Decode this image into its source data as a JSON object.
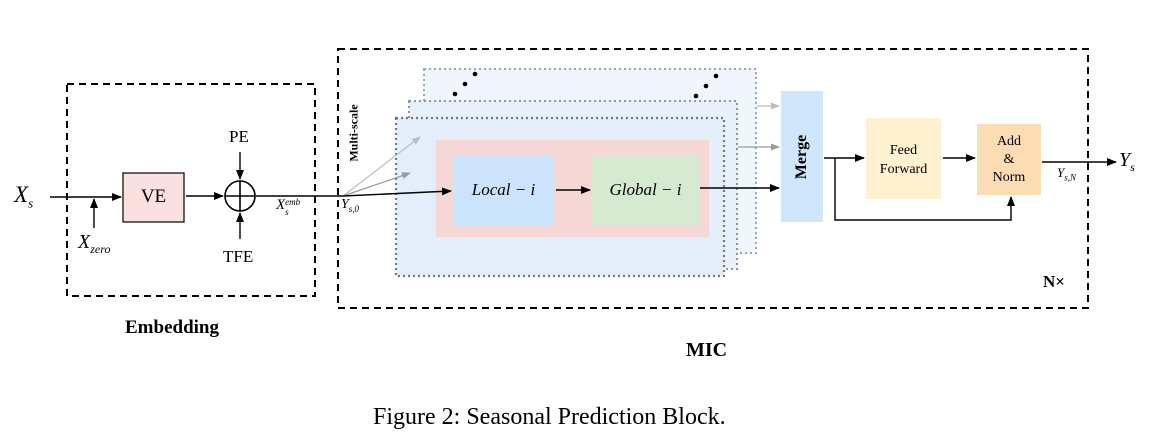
{
  "embedding": {
    "input_label": "X",
    "input_sub": "s",
    "zero_label": "X",
    "zero_sub": "zero",
    "ve_label": "VE",
    "pe_label": "PE",
    "tfe_label": "TFE",
    "emb_label": "X",
    "emb_sub": "s",
    "emb_sup": "emb",
    "section_title": "Embedding"
  },
  "mic": {
    "y0_label": "Y",
    "y0_sub": "s,0",
    "multiscale_label": "Multi-scale",
    "local_label": "Local − i",
    "global_label": "Global − i",
    "merge_label": "Merge",
    "ff_line1": "Feed",
    "ff_line2": "Forward",
    "an_line1": "Add",
    "an_line2": "&",
    "an_line3": "Norm",
    "yn_label": "Y",
    "yn_sub": "s,N",
    "output_label": "Y",
    "output_sub": "s",
    "repeat_label": "N×",
    "section_title": "MIC"
  },
  "caption": "Figure 2: Seasonal Prediction Block.",
  "colors": {
    "ve_fill": "#fbe0e0",
    "local_fill": "#cce4fb",
    "global_fill": "#d6ead2",
    "merge_fill": "#cfe6fb",
    "ff_fill": "#fdf1cf",
    "an_fill": "#fbdcb3",
    "scale_fill": "#f5d7d6",
    "stack_fill": "#e9f1fb"
  }
}
